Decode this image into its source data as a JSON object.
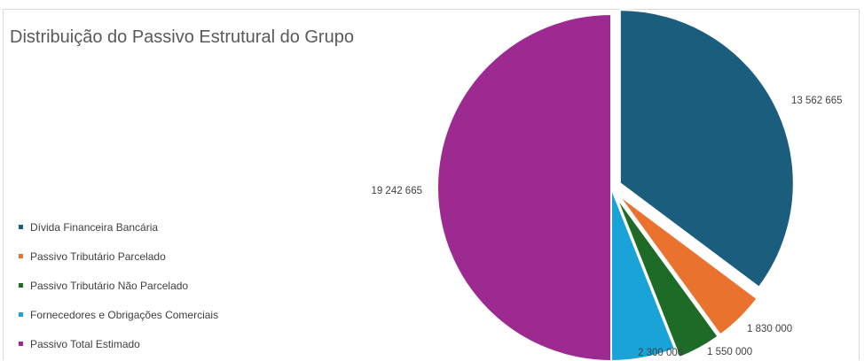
{
  "chart_data": {
    "type": "pie",
    "title": "Distribuição do Passivo Estrutural do Grupo",
    "legend_position": "left",
    "slices": [
      {
        "name": "Dívida Financeira Bancária",
        "value": 13562665,
        "label": "13 562 665",
        "color": "#1b5d7d",
        "exploded": true
      },
      {
        "name": "Passivo Tributário Parcelado",
        "value": 1830000,
        "label": "1 830 000",
        "color": "#e9722f",
        "exploded": true
      },
      {
        "name": "Passivo Tributário Não Parcelado",
        "value": 1550000,
        "label": "1 550 000",
        "color": "#1e6b28",
        "exploded": true
      },
      {
        "name": "Fornecedores e Obrigações Comerciais",
        "value": 2300000,
        "label": "2 300 000",
        "color": "#1aa3d6",
        "exploded": false
      },
      {
        "name": "Passivo Total Estimado",
        "value": 19242665,
        "label": "19 242 665",
        "color": "#9c2a91",
        "exploded": false
      }
    ]
  }
}
